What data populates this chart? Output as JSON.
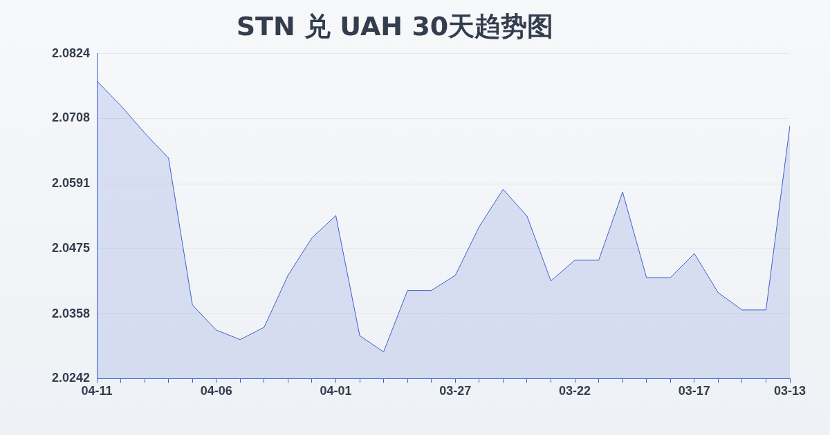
{
  "chart_data": {
    "type": "area",
    "title": "STN 兑 UAH 30天趋势图",
    "categories": [
      "04-11",
      null,
      null,
      null,
      null,
      "04-06",
      null,
      null,
      null,
      null,
      "04-01",
      null,
      null,
      null,
      null,
      "03-27",
      null,
      null,
      null,
      null,
      "03-22",
      null,
      null,
      null,
      null,
      "03-17",
      null,
      null,
      null,
      "03-13"
    ],
    "series": [
      {
        "color": "#3a5fcd",
        "values": [
          2.0775,
          2.0731,
          2.0682,
          2.0637,
          2.0374,
          2.0329,
          2.0312,
          2.0334,
          2.0427,
          2.0494,
          2.0534,
          2.0319,
          2.029,
          2.04,
          2.04,
          2.0427,
          2.0514,
          2.0581,
          2.0533,
          2.0417,
          2.0454,
          2.0454,
          2.0576,
          2.0423,
          2.0423,
          2.0466,
          2.0396,
          2.0365,
          2.0365,
          2.0695
        ]
      }
    ],
    "ylim": [
      2.0242,
      2.0824
    ],
    "yticks": [
      2.0242,
      2.0358,
      2.0475,
      2.0591,
      2.0708,
      2.0824
    ],
    "grid": "y",
    "legend": false,
    "marker": "none",
    "line_style": "solid"
  }
}
